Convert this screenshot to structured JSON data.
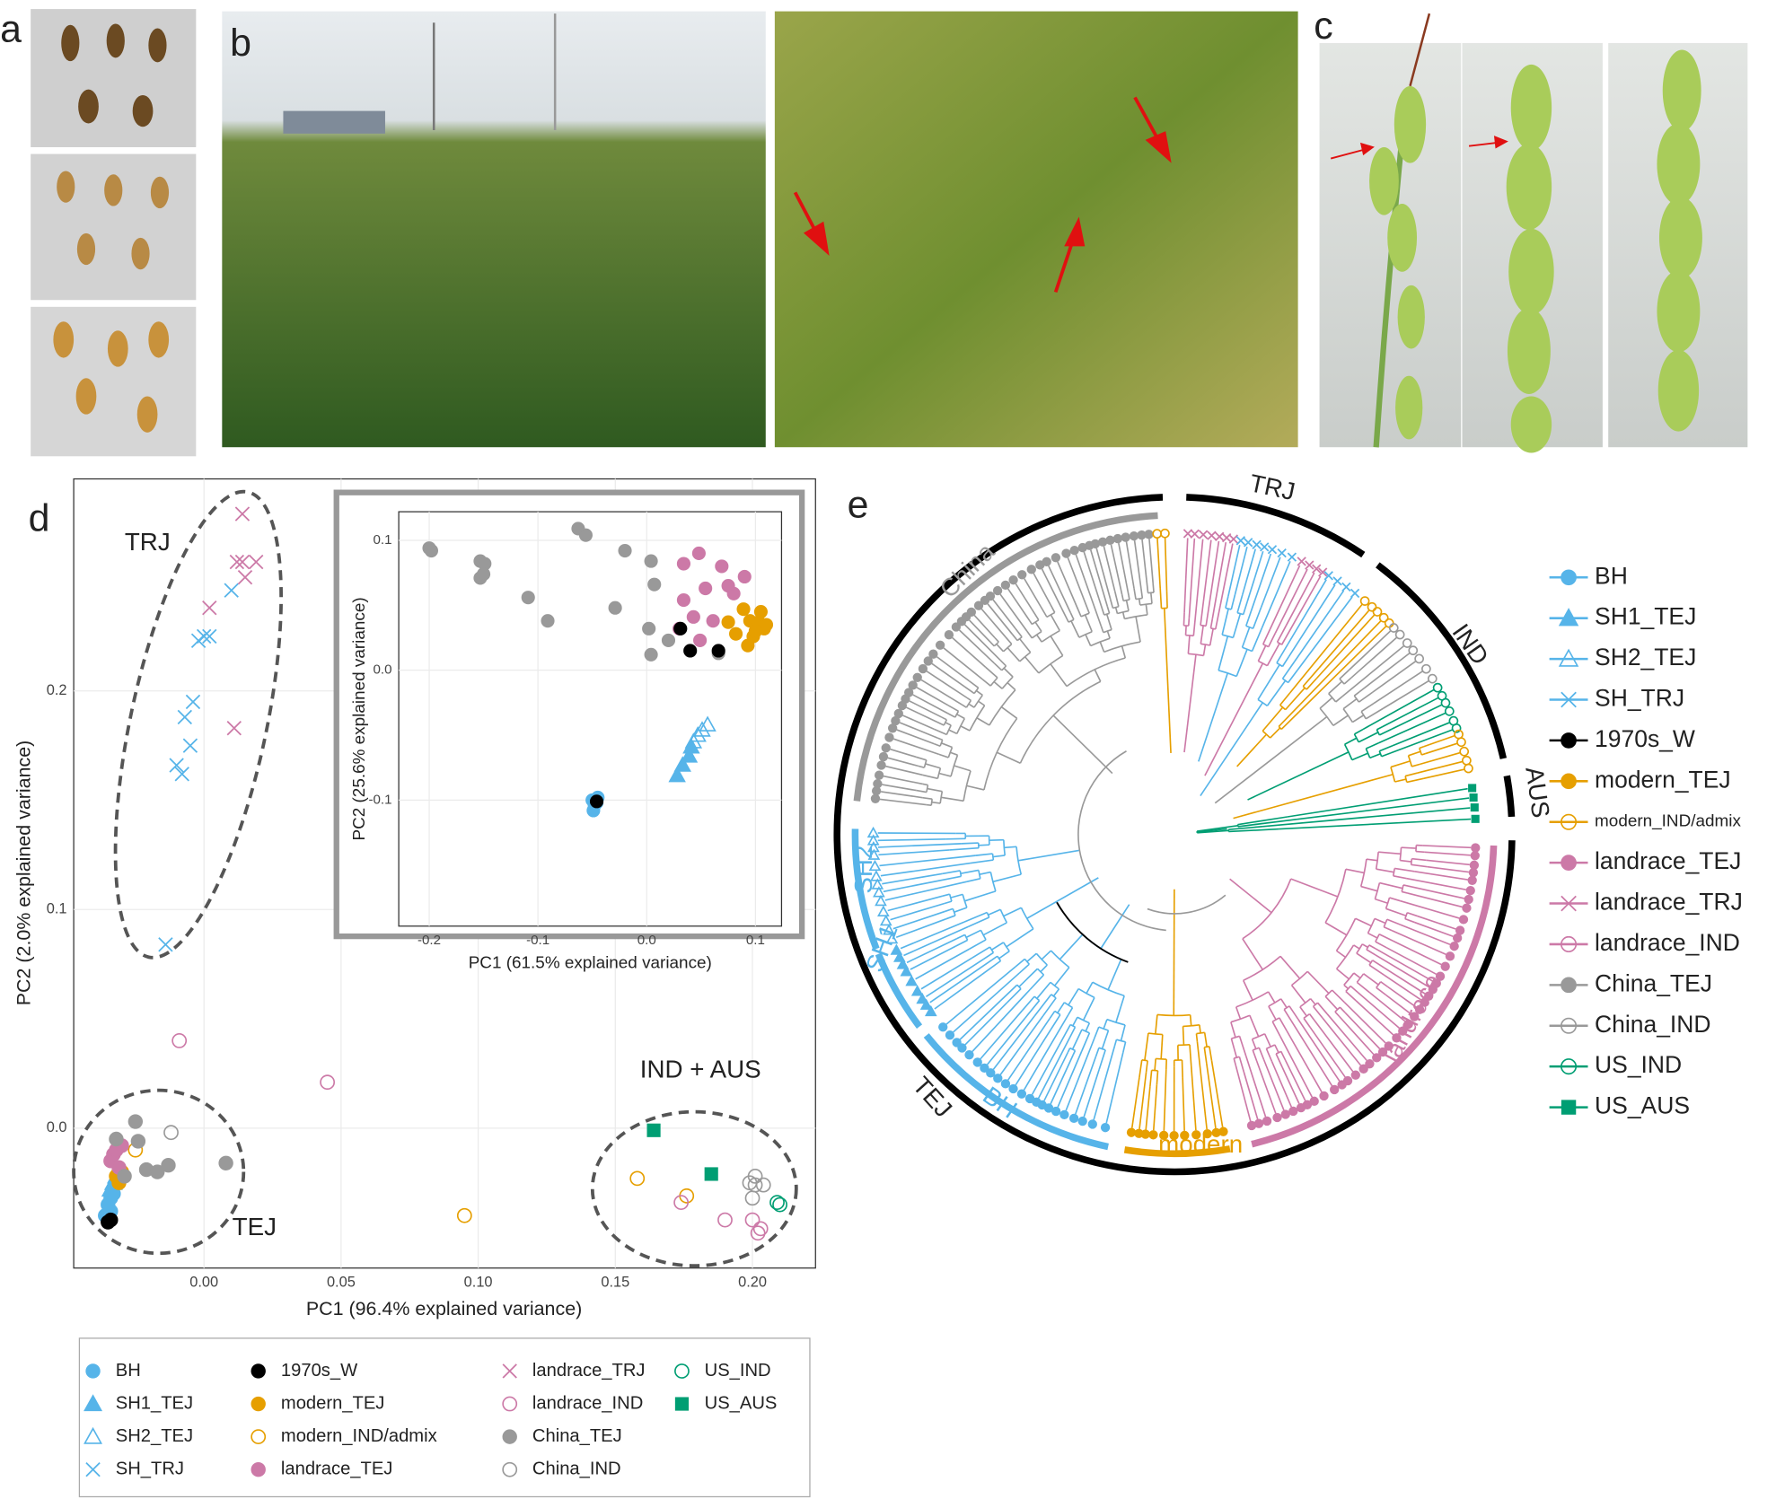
{
  "panel_labels": [
    "a",
    "b",
    "c",
    "d",
    "e"
  ],
  "tree": {
    "groups": [
      "TRJ",
      "IND",
      "AUS",
      "TEJ"
    ],
    "clades": [
      "China",
      "SH2",
      "SH1",
      "BH",
      "modern",
      "landrace"
    ]
  },
  "chart_data": [
    {
      "type": "scatter",
      "xlabel": "PC1 (96.4% explained variance)",
      "ylabel": "PC2 (2.0% explained variance)",
      "annotations": [
        "TRJ",
        "IND + AUS",
        "TEJ"
      ],
      "xlim": [
        -0.0475,
        0.223
      ],
      "ylim": [
        -0.064,
        0.297
      ],
      "xticks": [
        {
          "value": 0,
          "label": "0.00"
        },
        {
          "value": 0.05,
          "label": "0.05"
        },
        {
          "value": 0.1,
          "label": "0.10"
        },
        {
          "value": 0.15,
          "label": "0.15"
        },
        {
          "value": 0.2,
          "label": "0.20"
        }
      ],
      "yticks": [
        {
          "value": 0,
          "label": "0.0"
        },
        0.1,
        0.2
      ],
      "grid": true,
      "series": [
        {
          "name": "BH",
          "color": "#56b4e9",
          "marker": "circle",
          "x": [
            -0.035,
            -0.034,
            -0.036,
            -0.034,
            -0.033
          ],
          "values": [
            -0.035,
            -0.038,
            -0.04,
            -0.032,
            -0.03
          ]
        },
        {
          "name": "SH1_TEJ",
          "color": "#56b4e9",
          "marker": "triangle",
          "x": [
            -0.034,
            -0.033
          ],
          "values": [
            -0.028,
            -0.025
          ]
        },
        {
          "name": "SH2_TEJ",
          "color": "#56b4e9",
          "marker": "triangle-open",
          "x": [
            -0.032,
            -0.031
          ],
          "values": [
            -0.022,
            -0.02
          ]
        },
        {
          "name": "SH_TRJ",
          "color": "#56b4e9",
          "marker": "x",
          "x": [
            0.01,
            0.0,
            0.002,
            -0.002,
            -0.004,
            -0.007,
            -0.005,
            -0.01,
            -0.008,
            -0.014
          ],
          "values": [
            0.246,
            0.225,
            0.225,
            0.223,
            0.195,
            0.188,
            0.175,
            0.166,
            0.162,
            0.084
          ]
        },
        {
          "name": "1970s_W",
          "color": "#000000",
          "marker": "circle",
          "x": [
            -0.035,
            -0.034
          ],
          "values": [
            -0.043,
            -0.042
          ]
        },
        {
          "name": "modern_TEJ",
          "color": "#e69f00",
          "marker": "circle",
          "x": [
            -0.032,
            -0.031,
            -0.03
          ],
          "values": [
            -0.022,
            -0.025,
            -0.02
          ]
        },
        {
          "name": "modern_IND/admix",
          "color": "#e69f00",
          "marker": "circle-open",
          "x": [
            0.095,
            0.158,
            0.176,
            -0.031,
            -0.025
          ],
          "values": [
            -0.04,
            -0.023,
            -0.031,
            -0.02,
            -0.01
          ]
        },
        {
          "name": "landrace_TEJ",
          "color": "#cc79a7",
          "marker": "circle",
          "x": [
            -0.034,
            -0.033,
            -0.032,
            -0.031,
            -0.03
          ],
          "values": [
            -0.015,
            -0.012,
            -0.01,
            -0.018,
            -0.008
          ]
        },
        {
          "name": "landrace_TRJ",
          "color": "#cc79a7",
          "marker": "x",
          "x": [
            0.014,
            0.012,
            0.014,
            0.019,
            0.015,
            0.002,
            0.011
          ],
          "values": [
            0.281,
            0.259,
            0.259,
            0.259,
            0.252,
            0.238,
            0.183
          ]
        },
        {
          "name": "landrace_IND",
          "color": "#cc79a7",
          "marker": "circle-open",
          "x": [
            -0.009,
            0.045,
            0.174,
            0.19,
            0.2,
            0.202,
            0.203
          ],
          "values": [
            0.04,
            0.021,
            -0.034,
            -0.042,
            -0.042,
            -0.048,
            -0.046
          ]
        },
        {
          "name": "China_TEJ",
          "color": "#999999",
          "marker": "circle",
          "x": [
            -0.025,
            0.008,
            -0.013,
            -0.021,
            -0.029,
            -0.024,
            -0.032,
            -0.017
          ],
          "values": [
            0.003,
            -0.016,
            -0.017,
            -0.019,
            -0.022,
            -0.006,
            -0.005,
            -0.02
          ]
        },
        {
          "name": "China_IND",
          "color": "#999999",
          "marker": "circle-open",
          "x": [
            -0.012,
            0.199,
            0.201,
            0.204,
            0.2,
            0.201
          ],
          "values": [
            -0.002,
            -0.025,
            -0.026,
            -0.026,
            -0.032,
            -0.022
          ]
        },
        {
          "name": "US_IND",
          "color": "#009e73",
          "marker": "circle-open",
          "x": [
            0.209,
            0.21
          ],
          "values": [
            -0.034,
            -0.035
          ]
        },
        {
          "name": "US_AUS",
          "color": "#009e73",
          "marker": "square",
          "x": [
            0.164,
            0.185
          ],
          "values": [
            -0.001,
            -0.021
          ]
        }
      ]
    },
    {
      "type": "scatter",
      "xlabel": "PC1 (61.5% explained variance)",
      "ylabel": "PC2 (25.6% explained variance)",
      "xlim": [
        -0.228,
        0.124
      ],
      "ylim": [
        -0.197,
        0.122
      ],
      "xticks": [
        -0.2,
        -0.1,
        {
          "value": 0,
          "label": "0.0"
        },
        0.1
      ],
      "yticks": [
        -0.1,
        {
          "value": 0,
          "label": "0.0"
        },
        0.1
      ],
      "grid": true,
      "series": [
        {
          "color": "#999999",
          "marker": "circle",
          "x": [
            -0.2,
            -0.198,
            -0.153,
            -0.149,
            -0.153,
            -0.15,
            -0.109,
            -0.091,
            -0.063,
            -0.056,
            -0.02,
            -0.029,
            0.004,
            0.007,
            0.002,
            0.004,
            0.066,
            0.02
          ],
          "values": [
            0.094,
            0.092,
            0.084,
            0.082,
            0.071,
            0.074,
            0.056,
            0.038,
            0.109,
            0.104,
            0.092,
            0.048,
            0.084,
            0.066,
            0.032,
            0.012,
            0.013,
            0.023
          ]
        },
        {
          "color": "#cc79a7",
          "marker": "circle",
          "x": [
            0.034,
            0.048,
            0.069,
            0.054,
            0.08,
            0.034,
            0.043,
            0.061,
            0.03,
            0.049,
            0.09,
            0.075
          ],
          "values": [
            0.082,
            0.09,
            0.08,
            0.063,
            0.059,
            0.054,
            0.041,
            0.038,
            0.032,
            0.023,
            0.072,
            0.065
          ]
        },
        {
          "color": "#e69f00",
          "marker": "circle",
          "x": [
            0.089,
            0.095,
            0.103,
            0.108,
            0.098,
            0.093,
            0.082,
            0.075,
            0.105,
            0.11,
            0.1
          ],
          "values": [
            0.047,
            0.038,
            0.037,
            0.032,
            0.026,
            0.019,
            0.028,
            0.037,
            0.045,
            0.035,
            0.03
          ]
        },
        {
          "color": "#56b4e9",
          "marker": "circle",
          "x": [
            -0.05,
            -0.048,
            -0.046,
            -0.049,
            -0.045
          ],
          "values": [
            -0.1,
            -0.104,
            -0.102,
            -0.108,
            -0.098
          ]
        },
        {
          "color": "#56b4e9",
          "marker": "triangle",
          "x": [
            0.028,
            0.033,
            0.039,
            0.041
          ],
          "values": [
            -0.081,
            -0.073,
            -0.066,
            -0.059
          ]
        },
        {
          "color": "#56b4e9",
          "marker": "triangle-open",
          "x": [
            0.043,
            0.051,
            0.056,
            0.047
          ],
          "values": [
            -0.055,
            -0.046,
            -0.042,
            -0.05
          ]
        },
        {
          "color": "#000000",
          "marker": "circle",
          "x": [
            0.031,
            0.04,
            0.066,
            -0.046
          ],
          "values": [
            0.032,
            0.015,
            0.015,
            -0.101
          ]
        }
      ]
    }
  ]
}
